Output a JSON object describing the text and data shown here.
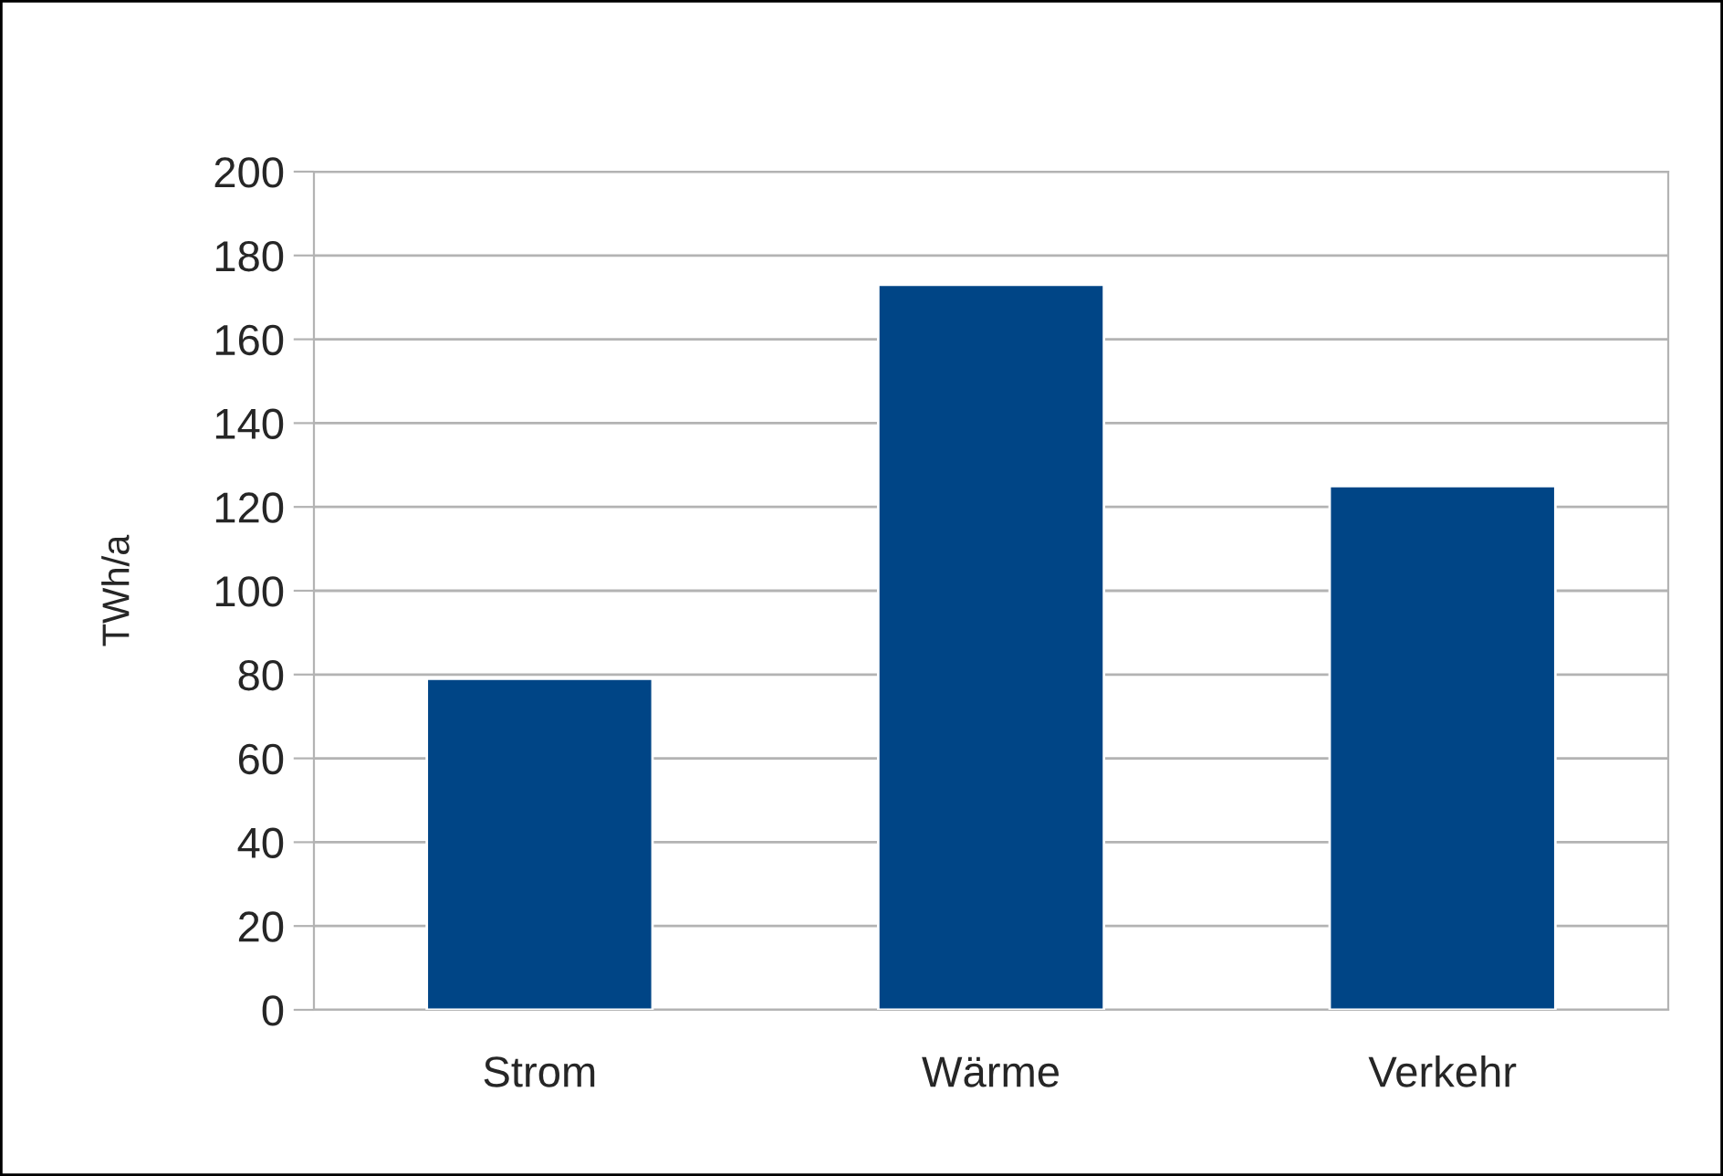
{
  "chart_data": {
    "type": "bar",
    "ylabel": "TWh/a",
    "categories": [
      "Strom",
      "Wärme",
      "Verkehr"
    ],
    "values": [
      79,
      173,
      125
    ],
    "color": "#004586",
    "ylim": [
      0,
      200
    ],
    "yticks": [
      0,
      20,
      40,
      60,
      80,
      100,
      120,
      140,
      160,
      180,
      200
    ],
    "grid": "y"
  }
}
